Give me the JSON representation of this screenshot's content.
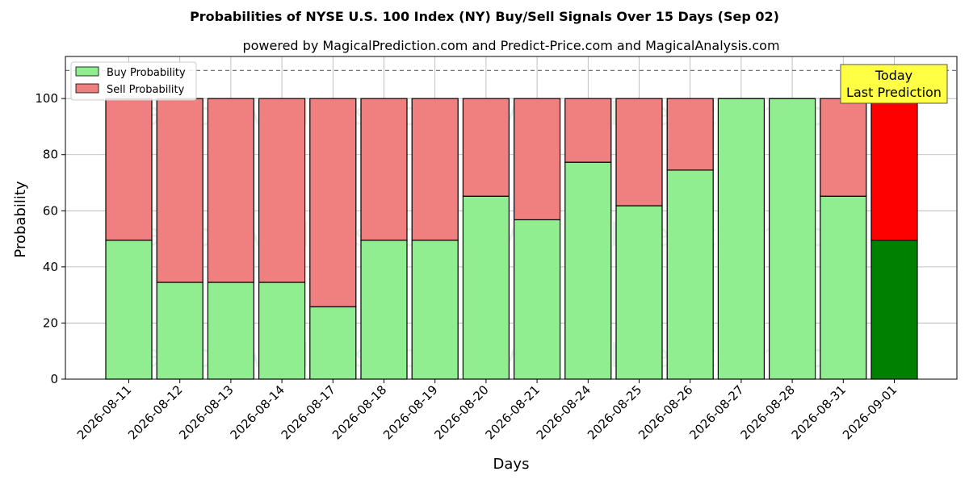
{
  "chart_data": {
    "type": "bar",
    "stacked": true,
    "title": "Probabilities of NYSE U.S. 100 Index (NY) Buy/Sell Signals Over 15 Days (Sep 02)",
    "subtitle": "powered by MagicalPrediction.com and Predict-Price.com and MagicalAnalysis.com",
    "xlabel": "Days",
    "ylabel": "Probability",
    "ylim": [
      0,
      115
    ],
    "yticks": [
      0,
      20,
      40,
      60,
      80,
      100
    ],
    "grid": true,
    "legend_placement": "top-left",
    "reference_line": 110,
    "categories": [
      "2026-08-11",
      "2026-08-12",
      "2026-08-13",
      "2026-08-14",
      "2026-08-17",
      "2026-08-18",
      "2026-08-19",
      "2026-08-20",
      "2026-08-21",
      "2026-08-24",
      "2026-08-25",
      "2026-08-26",
      "2026-08-27",
      "2026-08-28",
      "2026-08-31",
      "2026-09-01"
    ],
    "series": [
      {
        "name": "Buy Probability",
        "values": [
          49.5,
          34.5,
          34.5,
          34.5,
          25.8,
          49.5,
          49.5,
          65.2,
          56.8,
          77.3,
          61.8,
          74.5,
          100,
          100,
          65.2,
          49.5
        ]
      },
      {
        "name": "Sell Probability",
        "values": [
          50.5,
          65.5,
          65.5,
          65.5,
          74.2,
          50.5,
          50.5,
          34.8,
          43.2,
          22.7,
          38.2,
          25.5,
          0,
          0,
          34.8,
          50.5
        ]
      }
    ],
    "colors": {
      "buy": "#90ee90",
      "sell": "#f08080",
      "today_buy": "#008000",
      "today_sell": "#ff0000",
      "annotation_bg": "#ffff44",
      "grid": "#b0b0b0"
    },
    "annotation": {
      "line1": "Today",
      "line2": "Last Prediction"
    },
    "watermarks": [
      "MagicalAnalysis.com",
      "MagicalPrediction.com"
    ]
  }
}
